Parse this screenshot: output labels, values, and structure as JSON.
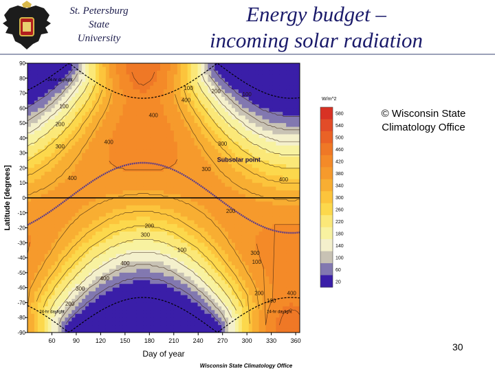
{
  "header": {
    "university_lines": [
      "St. Petersburg",
      "State",
      "University"
    ],
    "title_lines": [
      "Energy budget –",
      "incoming solar radiation"
    ]
  },
  "copyright": "© Wisconsin State Climatology Office",
  "page_number": "30",
  "icons": {
    "logo": "double-headed-eagle-crest-icon"
  },
  "chart_data": {
    "type": "heatmap",
    "title": "",
    "xlabel": "Day of year",
    "ylabel": "Latitude [degrees]",
    "credit": "Wisconsin State Climatology Office",
    "colorbar_unit": "W/m^2",
    "xlim": [
      30,
      365
    ],
    "ylim": [
      -90,
      90
    ],
    "x_ticks": [
      60,
      90,
      120,
      150,
      180,
      210,
      240,
      270,
      300,
      330,
      360
    ],
    "y_ticks": [
      90,
      80,
      70,
      60,
      50,
      40,
      30,
      20,
      10,
      0,
      -10,
      -20,
      -30,
      -40,
      -50,
      -60,
      -70,
      -80,
      -90
    ],
    "colorbar_levels": [
      20,
      60,
      100,
      140,
      180,
      220,
      260,
      300,
      340,
      380,
      420,
      460,
      500,
      540,
      580
    ],
    "colorbar_colors": [
      "#3a1ea8",
      "#8278b0",
      "#c8c2b4",
      "#f4f0cc",
      "#f8f2a0",
      "#fbe878",
      "#fcd84c",
      "#fcc43c",
      "#f8ae32",
      "#f69a2c",
      "#f48a28",
      "#ef7826",
      "#ea6226",
      "#e24c28",
      "#d83224"
    ],
    "subsolar_label": "Subsolar point",
    "polar_labels": [
      "24-hr daylight",
      "24-hr daylight",
      "24-hr daylight"
    ],
    "contour_labels": [
      "100",
      "200",
      "300",
      "400",
      "400",
      "300",
      "200",
      "100",
      "400",
      "400",
      "100",
      "200",
      "300",
      "400",
      "400",
      "300",
      "200",
      "100",
      "300",
      "200",
      "100",
      "400",
      "400",
      "300",
      "200",
      "100"
    ],
    "zero_line": 0
  }
}
